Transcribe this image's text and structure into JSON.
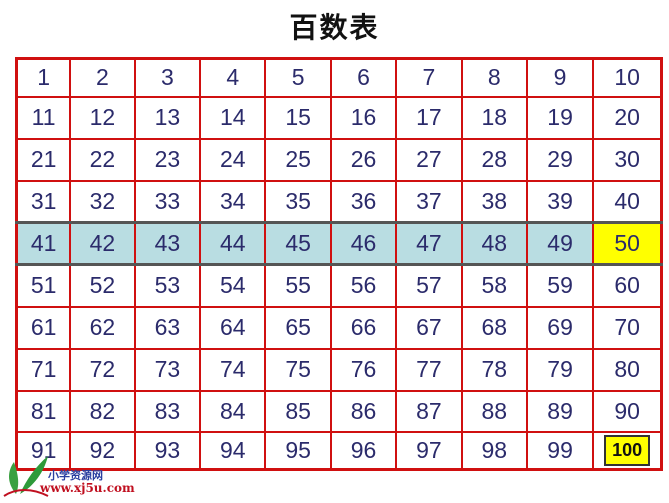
{
  "title": "百数表",
  "rows": [
    [
      "1",
      "2",
      "3",
      "4",
      "5",
      "6",
      "7",
      "8",
      "9",
      "10"
    ],
    [
      "11",
      "12",
      "13",
      "14",
      "15",
      "16",
      "17",
      "18",
      "19",
      "20"
    ],
    [
      "21",
      "22",
      "23",
      "24",
      "25",
      "26",
      "27",
      "28",
      "29",
      "30"
    ],
    [
      "31",
      "32",
      "33",
      "34",
      "35",
      "36",
      "37",
      "38",
      "39",
      "40"
    ],
    [
      "41",
      "42",
      "43",
      "44",
      "45",
      "46",
      "47",
      "48",
      "49",
      "50"
    ],
    [
      "51",
      "52",
      "53",
      "54",
      "55",
      "56",
      "57",
      "58",
      "59",
      "60"
    ],
    [
      "61",
      "62",
      "63",
      "64",
      "65",
      "66",
      "67",
      "68",
      "69",
      "70"
    ],
    [
      "71",
      "72",
      "73",
      "74",
      "75",
      "76",
      "77",
      "78",
      "79",
      "80"
    ],
    [
      "81",
      "82",
      "83",
      "84",
      "85",
      "86",
      "87",
      "88",
      "89",
      "90"
    ],
    [
      "91",
      "92",
      "93",
      "94",
      "95",
      "96",
      "97",
      "98",
      "99",
      "100"
    ]
  ],
  "highlighted_row_index": 4,
  "highlighted_cells": [
    "50",
    "100"
  ],
  "colors": {
    "grid_line": "#d01010",
    "row_highlight": "#b9dde2",
    "cell_highlight": "#ffff00",
    "number_text": "#2b2b6b"
  },
  "watermark": {
    "name": "小学资源网",
    "url": "www.xj5u.com"
  }
}
